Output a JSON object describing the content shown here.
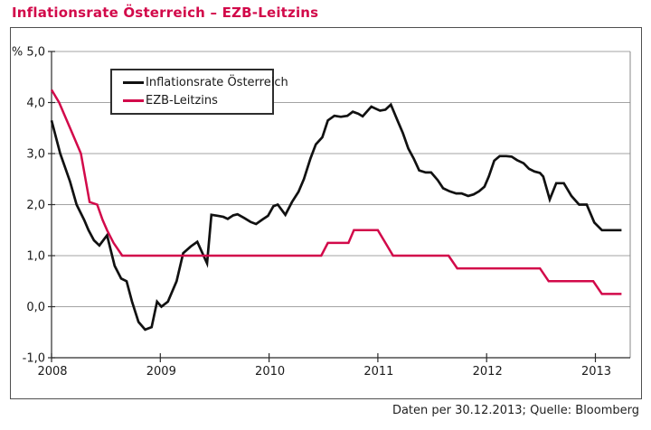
{
  "title": "Inflationsrate Österreich – EZB-Leitzins",
  "caption": "Daten per 30.12.2013; Quelle: Bloomberg",
  "colors": {
    "accent": "#d2094a",
    "series_black": "#111111",
    "grid": "#a3a3a3",
    "axis": "#2b2b2b",
    "plot_border": "#8a8a8a",
    "frame_border": "#4f4f4f"
  },
  "legend": {
    "items": [
      {
        "label": "Inflationsrate Österreich",
        "color": "#111111"
      },
      {
        "label": "EZB-Leitzins",
        "color": "#d2094a"
      }
    ]
  },
  "chart_data": {
    "type": "line",
    "title": "Inflationsrate Österreich – EZB-Leitzins",
    "xlabel": "",
    "ylabel": "%",
    "xlim": [
      2008.0,
      2013.32
    ],
    "ylim": [
      -1.0,
      5.0
    ],
    "grid": true,
    "legend_position": "top-left",
    "xticks": [
      {
        "value": 2008,
        "label": "2008"
      },
      {
        "value": 2009,
        "label": "2009"
      },
      {
        "value": 2010,
        "label": "2010"
      },
      {
        "value": 2011,
        "label": "2011"
      },
      {
        "value": 2012,
        "label": "2012"
      },
      {
        "value": 2013,
        "label": "2013"
      }
    ],
    "yticks": [
      {
        "value": 5,
        "label": "% 5,0"
      },
      {
        "value": 4,
        "label": "4,0"
      },
      {
        "value": 3,
        "label": "3,0"
      },
      {
        "value": 2,
        "label": "2,0"
      },
      {
        "value": 1,
        "label": "1,0"
      },
      {
        "value": 0,
        "label": "0,0"
      },
      {
        "value": -1,
        "label": "-1,0"
      }
    ],
    "series": [
      {
        "name": "Inflationsrate Österreich",
        "color": "#111111",
        "width": 2.7,
        "points": [
          [
            2008.0,
            3.65
          ],
          [
            2008.08,
            3.0
          ],
          [
            2008.17,
            2.45
          ],
          [
            2008.23,
            2.0
          ],
          [
            2008.3,
            1.7
          ],
          [
            2008.34,
            1.5
          ],
          [
            2008.39,
            1.3
          ],
          [
            2008.44,
            1.2
          ],
          [
            2008.51,
            1.4
          ],
          [
            2008.58,
            0.8
          ],
          [
            2008.64,
            0.55
          ],
          [
            2008.69,
            0.5
          ],
          [
            2008.74,
            0.1
          ],
          [
            2008.8,
            -0.3
          ],
          [
            2008.86,
            -0.45
          ],
          [
            2008.92,
            -0.4
          ],
          [
            2008.97,
            0.1
          ],
          [
            2009.01,
            0.0
          ],
          [
            2009.07,
            0.1
          ],
          [
            2009.15,
            0.5
          ],
          [
            2009.21,
            1.05
          ],
          [
            2009.28,
            1.18
          ],
          [
            2009.34,
            1.27
          ],
          [
            2009.43,
            0.85
          ],
          [
            2009.47,
            1.8
          ],
          [
            2009.53,
            1.78
          ],
          [
            2009.58,
            1.76
          ],
          [
            2009.62,
            1.72
          ],
          [
            2009.67,
            1.79
          ],
          [
            2009.71,
            1.81
          ],
          [
            2009.77,
            1.74
          ],
          [
            2009.83,
            1.66
          ],
          [
            2009.88,
            1.62
          ],
          [
            2009.94,
            1.71
          ],
          [
            2009.99,
            1.78
          ],
          [
            2010.04,
            1.97
          ],
          [
            2010.08,
            2.0
          ],
          [
            2010.15,
            1.8
          ],
          [
            2010.21,
            2.05
          ],
          [
            2010.27,
            2.25
          ],
          [
            2010.32,
            2.5
          ],
          [
            2010.38,
            2.9
          ],
          [
            2010.43,
            3.18
          ],
          [
            2010.49,
            3.32
          ],
          [
            2010.54,
            3.65
          ],
          [
            2010.6,
            3.74
          ],
          [
            2010.66,
            3.72
          ],
          [
            2010.72,
            3.74
          ],
          [
            2010.77,
            3.82
          ],
          [
            2010.82,
            3.78
          ],
          [
            2010.86,
            3.73
          ],
          [
            2010.91,
            3.85
          ],
          [
            2010.94,
            3.92
          ],
          [
            2010.98,
            3.88
          ],
          [
            2011.02,
            3.84
          ],
          [
            2011.07,
            3.86
          ],
          [
            2011.12,
            3.96
          ],
          [
            2011.18,
            3.65
          ],
          [
            2011.23,
            3.4
          ],
          [
            2011.28,
            3.1
          ],
          [
            2011.33,
            2.9
          ],
          [
            2011.38,
            2.67
          ],
          [
            2011.44,
            2.63
          ],
          [
            2011.49,
            2.63
          ],
          [
            2011.55,
            2.48
          ],
          [
            2011.6,
            2.32
          ],
          [
            2011.66,
            2.26
          ],
          [
            2011.72,
            2.22
          ],
          [
            2011.77,
            2.22
          ],
          [
            2011.83,
            2.17
          ],
          [
            2011.88,
            2.2
          ],
          [
            2011.93,
            2.26
          ],
          [
            2011.98,
            2.35
          ],
          [
            2012.02,
            2.55
          ],
          [
            2012.07,
            2.86
          ],
          [
            2012.12,
            2.95
          ],
          [
            2012.18,
            2.95
          ],
          [
            2012.23,
            2.94
          ],
          [
            2012.28,
            2.87
          ],
          [
            2012.34,
            2.81
          ],
          [
            2012.39,
            2.7
          ],
          [
            2012.44,
            2.65
          ],
          [
            2012.49,
            2.62
          ],
          [
            2012.52,
            2.55
          ],
          [
            2012.58,
            2.1
          ],
          [
            2012.64,
            2.42
          ],
          [
            2012.71,
            2.42
          ],
          [
            2012.78,
            2.17
          ],
          [
            2012.85,
            2.0
          ],
          [
            2012.92,
            2.0
          ],
          [
            2012.99,
            1.65
          ],
          [
            2013.06,
            1.5
          ],
          [
            2013.14,
            1.5
          ],
          [
            2013.24,
            1.5
          ]
        ]
      },
      {
        "name": "EZB-Leitzins",
        "color": "#d2094a",
        "width": 2.5,
        "points": [
          [
            2008.0,
            4.25
          ],
          [
            2008.07,
            4.0
          ],
          [
            2008.17,
            3.5
          ],
          [
            2008.27,
            3.0
          ],
          [
            2008.35,
            2.05
          ],
          [
            2008.42,
            2.0
          ],
          [
            2008.47,
            1.7
          ],
          [
            2008.51,
            1.5
          ],
          [
            2008.57,
            1.25
          ],
          [
            2008.65,
            1.0
          ],
          [
            2010.48,
            1.0
          ],
          [
            2010.54,
            1.25
          ],
          [
            2010.73,
            1.25
          ],
          [
            2010.78,
            1.5
          ],
          [
            2011.0,
            1.5
          ],
          [
            2011.07,
            1.25
          ],
          [
            2011.14,
            1.0
          ],
          [
            2011.65,
            1.0
          ],
          [
            2011.73,
            0.75
          ],
          [
            2012.49,
            0.75
          ],
          [
            2012.57,
            0.5
          ],
          [
            2012.98,
            0.5
          ],
          [
            2013.06,
            0.25
          ],
          [
            2013.24,
            0.25
          ]
        ]
      }
    ]
  }
}
